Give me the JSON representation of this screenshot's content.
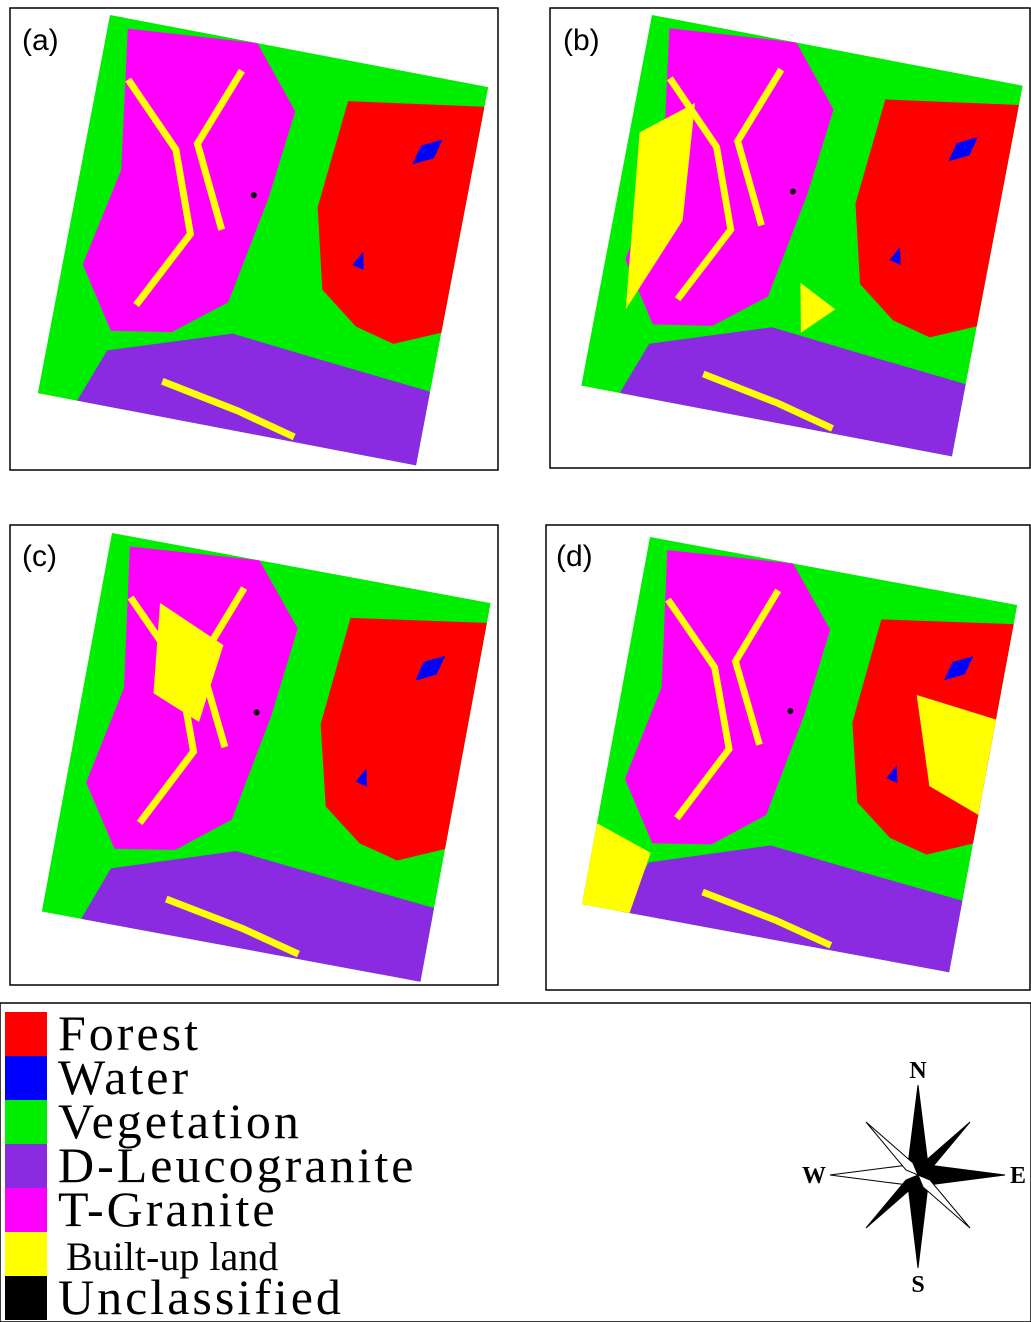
{
  "panels": [
    {
      "label": "(a)"
    },
    {
      "label": "(b)"
    },
    {
      "label": "(c)"
    },
    {
      "label": "(d)"
    }
  ],
  "legend": [
    {
      "label": "Forest",
      "color": "#ff0000"
    },
    {
      "label": "Water",
      "color": "#0000ff"
    },
    {
      "label": "Vegetation",
      "color": "#00ee00"
    },
    {
      "label": "D-Leucogranite",
      "color": "#8a2be2"
    },
    {
      "label": "T-Granite",
      "color": "#ff00ff"
    },
    {
      "label": "Built-up land",
      "color": "#ffff00"
    },
    {
      "label": "Unclassified",
      "color": "#000000"
    }
  ],
  "compass": {
    "n": "N",
    "s": "S",
    "w": "W",
    "e": "E"
  }
}
